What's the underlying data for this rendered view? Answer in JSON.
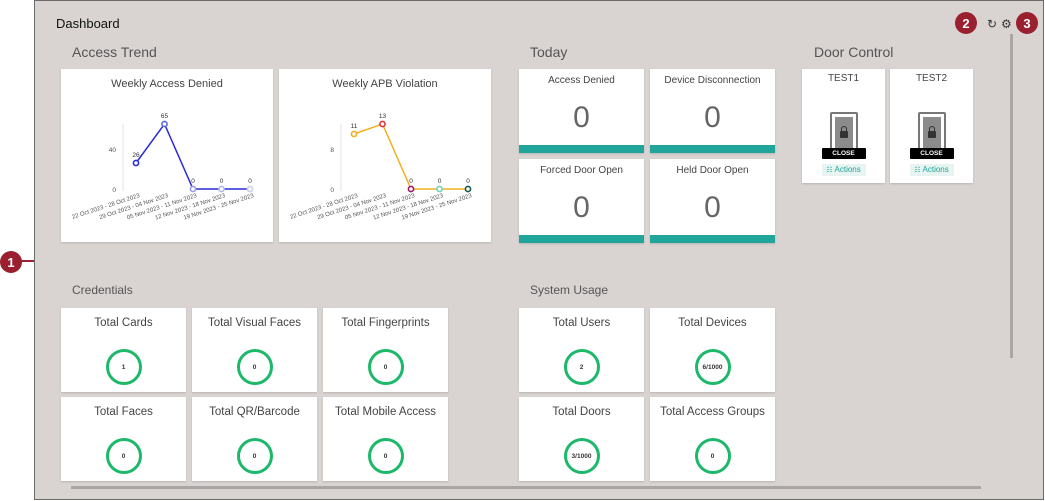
{
  "header": {
    "title": "Dashboard",
    "refresh_icon": "↻",
    "settings_icon": "⚙"
  },
  "callouts": [
    "1",
    "2",
    "3"
  ],
  "access_trend": {
    "title": "Access Trend",
    "charts": [
      {
        "title": "Weekly Access Denied",
        "y_ticks": [
          "40",
          "0"
        ],
        "categories": [
          "22 Oct 2023 - 28 Oct 2023",
          "29 Oct 2023 - 04 Nov 2023",
          "05 Nov 2023 - 11 Nov 2023",
          "12 Nov 2023 - 18 Nov 2023",
          "19 Nov 2023 - 25 Nov 2023"
        ],
        "values": [
          26,
          65,
          0,
          0,
          0
        ],
        "ymax": 80,
        "line_color": "#2a2ad8",
        "point_colors": [
          "#2a2ad8",
          "#5b6be0",
          "#9a9ae8",
          "#b0b8ee",
          "#c9cfef"
        ]
      },
      {
        "title": "Weekly APB Violation",
        "y_ticks": [
          "8",
          "0"
        ],
        "categories": [
          "22 Oct 2023 - 28 Oct 2023",
          "29 Oct 2023 - 04 Nov 2023",
          "05 Nov 2023 - 11 Nov 2023",
          "12 Nov 2023 - 18 Nov 2023",
          "19 Nov 2023 - 25 Nov 2023"
        ],
        "values": [
          11,
          13,
          0,
          0,
          0
        ],
        "ymax": 16,
        "line_color": "#f2b01e",
        "point_colors": [
          "#f2b01e",
          "#e0343d",
          "#9a1b6a",
          "#6ed3b6",
          "#1c5a4a"
        ]
      }
    ]
  },
  "today": {
    "title": "Today",
    "cards": [
      {
        "label": "Access Denied",
        "value": "0"
      },
      {
        "label": "Device Disconnection",
        "value": "0"
      },
      {
        "label": "Forced Door Open",
        "value": "0"
      },
      {
        "label": "Held Door Open",
        "value": "0"
      }
    ]
  },
  "door_control": {
    "title": "Door Control",
    "doors": [
      {
        "name": "TEST1",
        "status": "CLOSE",
        "actions_label": "Actions",
        "actions_icon": "☷"
      },
      {
        "name": "TEST2",
        "status": "CLOSE",
        "actions_label": "Actions",
        "actions_icon": "☷"
      }
    ]
  },
  "credentials": {
    "title": "Credentials",
    "cards": [
      {
        "label": "Total Cards",
        "value": "1"
      },
      {
        "label": "Total Visual Faces",
        "value": "0"
      },
      {
        "label": "Total Fingerprints",
        "value": "0"
      },
      {
        "label": "Total Faces",
        "value": "0"
      },
      {
        "label": "Total QR/Barcode",
        "value": "0"
      },
      {
        "label": "Total Mobile Access",
        "value": "0"
      }
    ]
  },
  "system_usage": {
    "title": "System Usage",
    "cards": [
      {
        "label": "Total Users",
        "value": "2"
      },
      {
        "label": "Total Devices",
        "value": "6/1000"
      },
      {
        "label": "Total Doors",
        "value": "3/1000"
      },
      {
        "label": "Total Access Groups",
        "value": "0"
      }
    ]
  }
}
